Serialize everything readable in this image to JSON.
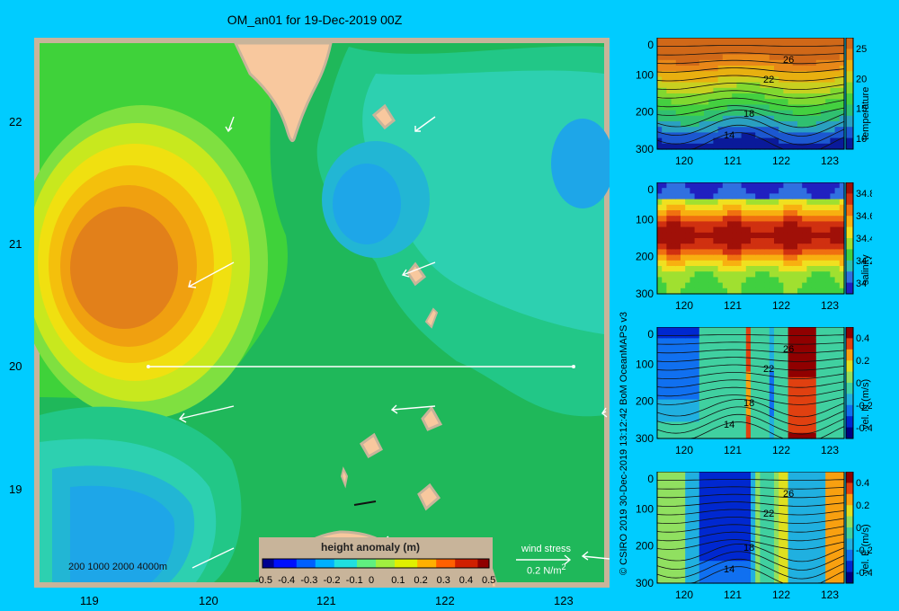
{
  "map": {
    "title": "OM_an01 for 19-Dec-2019 00Z",
    "lat_ticks": [
      "22",
      "21",
      "20",
      "19"
    ],
    "lon_ticks": [
      "119",
      "120",
      "121",
      "122",
      "123"
    ],
    "depth_legend": "200  1000  2000  4000m",
    "colorbar_title": "height anomaly (m)",
    "colorbar_ticks": [
      "-0.5",
      "-0.4",
      "-0.3",
      "-0.2",
      "-0.1",
      "0",
      "0.1",
      "0.2",
      "0.3",
      "0.4",
      "0.5"
    ],
    "wind_label": "wind stress",
    "wind_scale": "0.2 N/m",
    "wind_scale_sup": "2"
  },
  "credit": "© CSIRO 2019   30-Dec-2019 13:12:42 BoM OceanMAPS v3",
  "panels": [
    {
      "id": "temperature",
      "label": "temperature",
      "depth_ticks": [
        "0",
        "100",
        "200",
        "300"
      ],
      "lon_ticks": [
        "120",
        "121",
        "122",
        "123"
      ],
      "cb_ticks": [
        "25",
        "20",
        "15",
        "10"
      ],
      "contour_labels": [
        "26",
        "22",
        "18",
        "14"
      ]
    },
    {
      "id": "salinity",
      "label": "salinity",
      "depth_ticks": [
        "0",
        "100",
        "200",
        "300"
      ],
      "lon_ticks": [
        "120",
        "121",
        "122",
        "123"
      ],
      "cb_ticks": [
        "34.8",
        "34.6",
        "34.4",
        "34.2",
        "34"
      ],
      "contour_labels": []
    },
    {
      "id": "velN",
      "label": "vel. N (m/s)",
      "depth_ticks": [
        "0",
        "100",
        "200",
        "300"
      ],
      "lon_ticks": [
        "120",
        "121",
        "122",
        "123"
      ],
      "cb_ticks": [
        "0.4",
        "0.2",
        "0",
        "-0.2",
        "-0.4"
      ],
      "contour_labels": [
        "26",
        "22",
        "18",
        "14"
      ]
    },
    {
      "id": "velE",
      "label": "vel. E (m/s)",
      "depth_ticks": [
        "0",
        "100",
        "200",
        "300"
      ],
      "lon_ticks": [
        "120",
        "121",
        "122",
        "123"
      ],
      "cb_ticks": [
        "0.4",
        "0.2",
        "0",
        "-0.2",
        "-0.4"
      ],
      "contour_labels": [
        "26",
        "22",
        "18",
        "14"
      ]
    }
  ]
}
